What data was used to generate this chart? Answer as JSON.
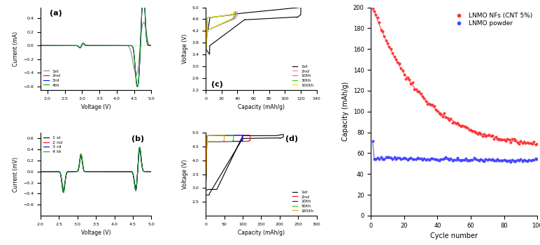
{
  "fig_bg": "#ffffff",
  "panel_a": {
    "label": "(a)",
    "xlabel": "Voltage (V)",
    "ylabel": "Current (mA)",
    "xlim": [
      1.8,
      5.0
    ],
    "ylim": [
      -0.65,
      0.56
    ],
    "yticks": [
      -0.6,
      -0.4,
      -0.2,
      0.0,
      0.2,
      0.4
    ],
    "xticks": [
      2.0,
      2.5,
      3.0,
      3.5,
      4.0,
      4.5,
      5.0
    ],
    "legend": [
      "1st",
      "2nd",
      "3rd",
      "4th"
    ],
    "colors": [
      "#888888",
      "#ff0000",
      "#0000ff",
      "#00aa00"
    ]
  },
  "panel_b": {
    "label": "(b)",
    "xlabel": "Voltage (V)",
    "ylabel": "Current (mV)",
    "xlim": [
      2.0,
      5.0
    ],
    "ylim": [
      -0.8,
      0.7
    ],
    "yticks": [
      -0.6,
      -0.4,
      -0.2,
      0.0,
      0.2,
      0.4,
      0.6
    ],
    "xticks": [
      2.0,
      2.5,
      3.0,
      3.5,
      4.0,
      4.5,
      5.0
    ],
    "legend": [
      "1 st",
      "2 nd",
      "3 rd",
      "4 th"
    ],
    "colors": [
      "#000000",
      "#ff0000",
      "#0000ff",
      "#00aa00"
    ]
  },
  "panel_c": {
    "label": "(c)",
    "xlabel": "Capacity (mAh/g)",
    "ylabel": "Voltage (V)",
    "xlim": [
      0,
      140
    ],
    "ylim": [
      2.2,
      5.0
    ],
    "yticks": [
      2.2,
      2.6,
      3.0,
      3.4,
      3.8,
      4.2,
      4.6,
      5.0
    ],
    "xticks": [
      0,
      20,
      40,
      60,
      80,
      100,
      120,
      140
    ],
    "legend": [
      "1st",
      "2nd",
      "10th",
      "30th",
      "100th"
    ],
    "colors": [
      "#000000",
      "#ff8888",
      "#6688ff",
      "#22cc22",
      "#ffcc00"
    ]
  },
  "panel_d": {
    "label": "(d)",
    "xlabel": "Capacity (mAh/g)",
    "ylabel": "Voltage (V)",
    "xlim": [
      0,
      300
    ],
    "ylim": [
      2.0,
      5.0
    ],
    "yticks": [
      2.5,
      3.0,
      3.5,
      4.0,
      4.5,
      5.0
    ],
    "xticks": [
      0,
      50,
      100,
      150,
      200,
      250,
      300
    ],
    "legend": [
      "1st",
      "2nd",
      "10th",
      "50th",
      "165th"
    ],
    "colors": [
      "#000000",
      "#ff0000",
      "#0000ff",
      "#22cc22",
      "#ff9900"
    ]
  },
  "panel_e": {
    "label": "",
    "xlabel": "Cycle number",
    "ylabel": "Capacity (mAh/g)",
    "xlim": [
      0,
      100
    ],
    "ylim": [
      0,
      200
    ],
    "yticks": [
      0,
      20,
      40,
      60,
      80,
      100,
      120,
      140,
      160,
      180,
      200
    ],
    "xticks": [
      0,
      20,
      40,
      60,
      80,
      100
    ],
    "legend": [
      "LNMO NFs (CNT 5%)",
      "LNMO powder"
    ],
    "colors": [
      "#ff3333",
      "#4444ff"
    ]
  }
}
